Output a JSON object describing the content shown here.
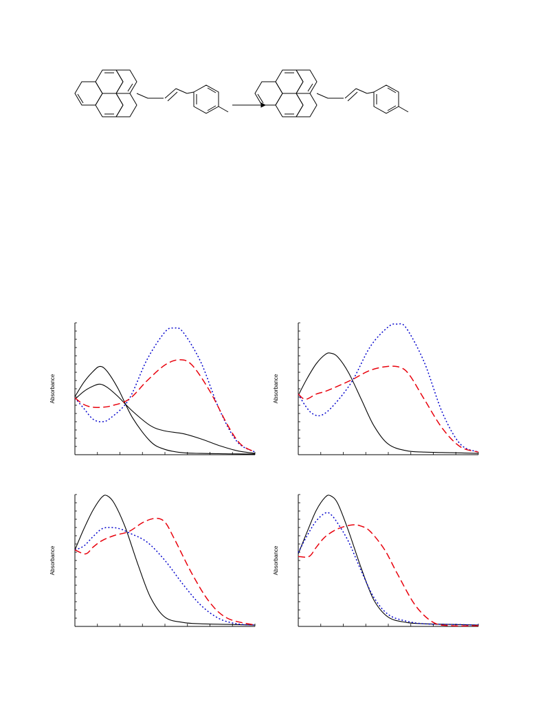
{
  "colors": {
    "black": "#000000",
    "red": "#e8000b",
    "blue": "#0000cc"
  },
  "chart_data": [
    {
      "type": "line",
      "title": "",
      "xlabel": "",
      "ylabel": "Absorbance",
      "xlim": [
        0,
        1
      ],
      "ylim": [
        0,
        1
      ],
      "series": [
        {
          "style": "solid",
          "color": "#000000",
          "x": [
            0,
            0.05,
            0.1,
            0.14,
            0.18,
            0.24,
            0.32,
            0.42,
            0.5,
            0.6,
            0.7,
            0.8,
            0.9,
            1.0
          ],
          "y": [
            0.44,
            0.55,
            0.63,
            0.67,
            0.63,
            0.5,
            0.28,
            0.1,
            0.04,
            0.015,
            0.01,
            0.008,
            0.006,
            0.005
          ]
        },
        {
          "style": "solid",
          "color": "#000000",
          "x": [
            0,
            0.05,
            0.1,
            0.14,
            0.18,
            0.24,
            0.32,
            0.42,
            0.5,
            0.6,
            0.7,
            0.8,
            0.9,
            1.0
          ],
          "y": [
            0.42,
            0.48,
            0.52,
            0.535,
            0.51,
            0.44,
            0.33,
            0.22,
            0.18,
            0.16,
            0.12,
            0.07,
            0.03,
            0.01
          ]
        },
        {
          "style": "dotted",
          "color": "#0000cc",
          "x": [
            0,
            0.05,
            0.1,
            0.15,
            0.2,
            0.3,
            0.4,
            0.5,
            0.55,
            0.6,
            0.7,
            0.8,
            0.9,
            1.0
          ],
          "y": [
            0.43,
            0.35,
            0.27,
            0.25,
            0.28,
            0.42,
            0.72,
            0.93,
            0.96,
            0.93,
            0.7,
            0.35,
            0.1,
            0.02
          ]
        },
        {
          "style": "dashed",
          "color": "#e8000b",
          "x": [
            0,
            0.05,
            0.1,
            0.15,
            0.2,
            0.3,
            0.4,
            0.5,
            0.58,
            0.65,
            0.75,
            0.85,
            0.92,
            1.0
          ],
          "y": [
            0.43,
            0.38,
            0.36,
            0.36,
            0.37,
            0.42,
            0.56,
            0.68,
            0.72,
            0.68,
            0.48,
            0.22,
            0.08,
            0.02
          ]
        }
      ]
    },
    {
      "type": "line",
      "title": "",
      "xlabel": "",
      "ylabel": "Absorbance",
      "xlim": [
        0,
        1
      ],
      "ylim": [
        0,
        1
      ],
      "series": [
        {
          "style": "solid",
          "color": "#000000",
          "x": [
            0,
            0.05,
            0.1,
            0.15,
            0.18,
            0.22,
            0.28,
            0.35,
            0.42,
            0.5,
            0.6,
            0.7,
            0.85,
            1.0
          ],
          "y": [
            0.45,
            0.58,
            0.69,
            0.76,
            0.77,
            0.74,
            0.62,
            0.42,
            0.22,
            0.08,
            0.03,
            0.02,
            0.015,
            0.01
          ]
        },
        {
          "style": "dotted",
          "color": "#0000cc",
          "x": [
            0,
            0.04,
            0.08,
            0.13,
            0.2,
            0.3,
            0.4,
            0.5,
            0.55,
            0.6,
            0.7,
            0.8,
            0.9,
            1.0
          ],
          "y": [
            0.46,
            0.37,
            0.31,
            0.3,
            0.38,
            0.56,
            0.82,
            0.97,
            0.99,
            0.96,
            0.7,
            0.32,
            0.08,
            0.02
          ]
        },
        {
          "style": "dashed",
          "color": "#e8000b",
          "x": [
            0,
            0.04,
            0.1,
            0.15,
            0.22,
            0.3,
            0.4,
            0.5,
            0.57,
            0.62,
            0.7,
            0.8,
            0.9,
            1.0
          ],
          "y": [
            0.46,
            0.42,
            0.46,
            0.48,
            0.52,
            0.57,
            0.64,
            0.67,
            0.66,
            0.6,
            0.42,
            0.2,
            0.06,
            0.02
          ]
        }
      ]
    },
    {
      "type": "line",
      "title": "",
      "xlabel": "",
      "ylabel": "Absorbance",
      "xlim": [
        0,
        1
      ],
      "ylim": [
        0,
        1
      ],
      "series": [
        {
          "style": "solid",
          "color": "#000000",
          "x": [
            0,
            0.05,
            0.1,
            0.15,
            0.18,
            0.22,
            0.28,
            0.35,
            0.42,
            0.5,
            0.6,
            0.7,
            0.85,
            1.0
          ],
          "y": [
            0.58,
            0.74,
            0.88,
            0.98,
            0.99,
            0.93,
            0.75,
            0.47,
            0.22,
            0.07,
            0.03,
            0.02,
            0.015,
            0.01
          ]
        },
        {
          "style": "dotted",
          "color": "#0000cc",
          "x": [
            0,
            0.05,
            0.1,
            0.15,
            0.2,
            0.25,
            0.3,
            0.4,
            0.5,
            0.6,
            0.7,
            0.8,
            0.9,
            1.0
          ],
          "y": [
            0.58,
            0.61,
            0.68,
            0.74,
            0.75,
            0.74,
            0.71,
            0.64,
            0.5,
            0.32,
            0.16,
            0.06,
            0.02,
            0.01
          ]
        },
        {
          "style": "dashed",
          "color": "#e8000b",
          "x": [
            0,
            0.06,
            0.1,
            0.15,
            0.22,
            0.3,
            0.38,
            0.45,
            0.5,
            0.55,
            0.65,
            0.75,
            0.85,
            1.0
          ],
          "y": [
            0.58,
            0.55,
            0.6,
            0.65,
            0.69,
            0.72,
            0.79,
            0.82,
            0.79,
            0.67,
            0.4,
            0.18,
            0.06,
            0.01
          ]
        }
      ]
    },
    {
      "type": "line",
      "title": "",
      "xlabel": "",
      "ylabel": "Absorbance",
      "xlim": [
        0,
        1
      ],
      "ylim": [
        0,
        1
      ],
      "series": [
        {
          "style": "solid",
          "color": "#000000",
          "x": [
            0,
            0.05,
            0.1,
            0.15,
            0.18,
            0.22,
            0.28,
            0.35,
            0.42,
            0.5,
            0.6,
            0.7,
            0.85,
            1.0
          ],
          "y": [
            0.55,
            0.72,
            0.88,
            0.98,
            0.99,
            0.93,
            0.72,
            0.44,
            0.2,
            0.07,
            0.03,
            0.02,
            0.015,
            0.01
          ]
        },
        {
          "style": "dotted",
          "color": "#0000cc",
          "x": [
            0,
            0.05,
            0.1,
            0.15,
            0.18,
            0.22,
            0.28,
            0.35,
            0.42,
            0.5,
            0.6,
            0.7,
            0.85,
            1.0
          ],
          "y": [
            0.56,
            0.69,
            0.8,
            0.86,
            0.85,
            0.78,
            0.64,
            0.42,
            0.22,
            0.09,
            0.04,
            0.02,
            0.015,
            0.01
          ]
        },
        {
          "style": "dashed",
          "color": "#e8000b",
          "x": [
            0,
            0.06,
            0.1,
            0.15,
            0.22,
            0.3,
            0.35,
            0.4,
            0.48,
            0.55,
            0.65,
            0.75,
            0.85,
            1.0
          ],
          "y": [
            0.53,
            0.53,
            0.6,
            0.68,
            0.74,
            0.77,
            0.76,
            0.72,
            0.58,
            0.4,
            0.16,
            0.03,
            0.005,
            0.005
          ]
        }
      ]
    }
  ]
}
